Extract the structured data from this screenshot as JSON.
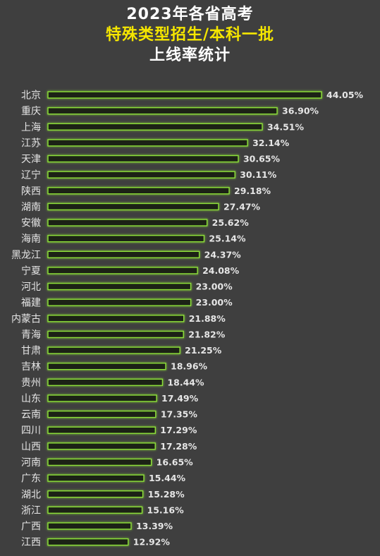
{
  "title": {
    "line1": "2023年各省高考",
    "line2": "特殊类型招生/本科一批",
    "line3": "上线率统计"
  },
  "colors": {
    "background": "#3f3f3f",
    "bar_outline": "#8ee03a",
    "bar_fill": "#1c2416",
    "title_highlight": "#f5e600"
  },
  "chart_data": {
    "type": "bar",
    "orientation": "horizontal",
    "title": "2023年各省高考 特殊类型招生/本科一批 上线率统计",
    "value_suffix": "%",
    "categories": [
      "北京",
      "重庆",
      "上海",
      "江苏",
      "天津",
      "辽宁",
      "陕西",
      "湖南",
      "安徽",
      "海南",
      "黑龙江",
      "宁夏",
      "河北",
      "福建",
      "内蒙古",
      "青海",
      "甘肃",
      "吉林",
      "贵州",
      "山东",
      "云南",
      "四川",
      "山西",
      "河南",
      "广东",
      "湖北",
      "浙江",
      "广西",
      "江西"
    ],
    "values": [
      44.05,
      36.9,
      34.51,
      32.14,
      30.65,
      30.11,
      29.18,
      27.47,
      25.62,
      25.14,
      24.37,
      24.08,
      23.0,
      23.0,
      21.88,
      21.82,
      21.25,
      18.96,
      18.44,
      17.49,
      17.35,
      17.29,
      17.28,
      16.65,
      15.44,
      15.28,
      15.16,
      13.39,
      12.92
    ],
    "labels": [
      "44.05%",
      "36.90%",
      "34.51%",
      "32.14%",
      "30.65%",
      "30.11%",
      "29.18%",
      "27.47%",
      "25.62%",
      "25.14%",
      "24.37%",
      "24.08%",
      "23.00%",
      "23.00%",
      "21.88%",
      "21.82%",
      "21.25%",
      "18.96%",
      "18.44%",
      "17.49%",
      "17.35%",
      "17.29%",
      "17.28%",
      "16.65%",
      "15.44%",
      "15.28%",
      "15.16%",
      "13.39%",
      "12.92%"
    ],
    "xlim": [
      0,
      44.05
    ],
    "grid": false,
    "legend": "none"
  }
}
